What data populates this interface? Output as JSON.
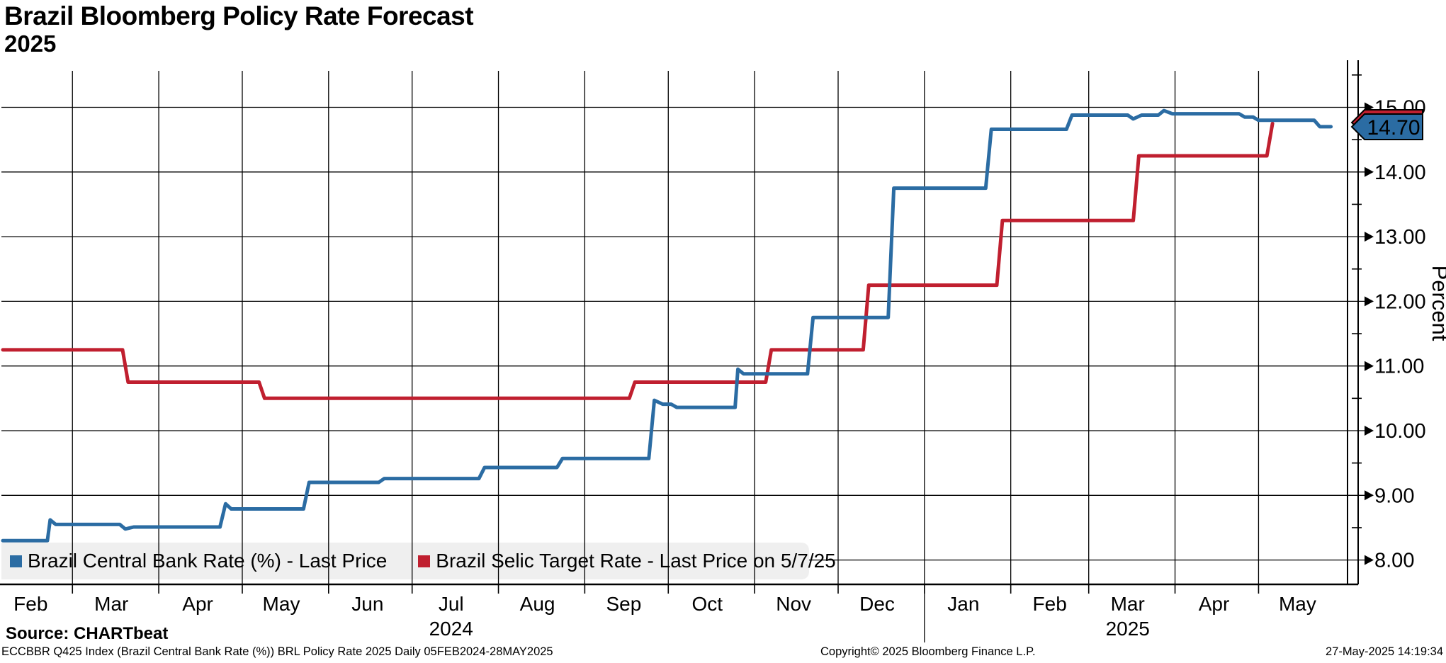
{
  "header": {
    "title": "Brazil Bloomberg Policy Rate Forecast",
    "subtitle": "2025"
  },
  "legend": {
    "items": [
      {
        "label": "Brazil Central Bank Rate (%) - Last Price",
        "color": "#2b6ca3"
      },
      {
        "label": "Brazil Selic Target Rate - Last Price on 5/7/25",
        "color": "#c01f2f"
      }
    ],
    "background_color": "#efefef"
  },
  "right_axis": {
    "title": "Percent",
    "last_price_tag": {
      "value": "14.70",
      "fill": "#2b6ca3",
      "text_color": "#ffffff"
    },
    "secondary_tag": {
      "value": "14.75",
      "fill": "#c01f2f"
    }
  },
  "footer": {
    "source": "Source: CHARTbeat",
    "description": "ECCBBR Q425 Index (Brazil Central Bank Rate (%)) BRL Policy Rate 2025  Daily 05FEB2024-28MAY2025",
    "copyright": "Copyright© 2025 Bloomberg Finance L.P.",
    "timestamp": "27-May-2025 14:19:34"
  },
  "chart_data": {
    "type": "line",
    "title": "Brazil Bloomberg Policy Rate Forecast 2025",
    "grid": true,
    "legend_position": "bottom-left-inside",
    "x_axis": {
      "unit": "days since 05FEB2024",
      "start": "05FEB2024",
      "end": "28MAY2025",
      "month_boundary_days": [
        25,
        56,
        86,
        117,
        147,
        178,
        209,
        239,
        270,
        300,
        331,
        362,
        390,
        421,
        451
      ],
      "month_labels": [
        {
          "label": "Feb",
          "day": 10
        },
        {
          "label": "Mar",
          "day": 39
        },
        {
          "label": "Apr",
          "day": 70
        },
        {
          "label": "May",
          "day": 100
        },
        {
          "label": "Jun",
          "day": 131
        },
        {
          "label": "Jul",
          "day": 161
        },
        {
          "label": "Aug",
          "day": 192
        },
        {
          "label": "Sep",
          "day": 223
        },
        {
          "label": "Oct",
          "day": 253
        },
        {
          "label": "Nov",
          "day": 284
        },
        {
          "label": "Dec",
          "day": 314
        },
        {
          "label": "Jan",
          "day": 345
        },
        {
          "label": "Feb",
          "day": 376
        },
        {
          "label": "Mar",
          "day": 404
        },
        {
          "label": "Apr",
          "day": 435
        },
        {
          "label": "May",
          "day": 465
        }
      ],
      "year_labels": [
        {
          "label": "2024",
          "day": 161
        },
        {
          "label": "2025",
          "day": 404
        }
      ],
      "year_separator_day": 331
    },
    "y_axis": {
      "label": "Percent",
      "ticks": [
        8,
        9,
        10,
        11,
        12,
        13,
        14,
        15
      ],
      "tick_labels": [
        "8.00",
        "9.00",
        "10.00",
        "11.00",
        "12.00",
        "13.00",
        "14.00",
        "15.00"
      ],
      "minor_step": 0.5,
      "range_shown": [
        7.6,
        15.6
      ]
    },
    "series": [
      {
        "name": "Brazil Selic Target Rate",
        "color": "#c01f2f",
        "last_price": 14.75,
        "last_price_date": "5/7/25",
        "points": [
          [
            0,
            11.25
          ],
          [
            43,
            11.25
          ],
          [
            45,
            10.75
          ],
          [
            92,
            10.75
          ],
          [
            94,
            10.5
          ],
          [
            225,
            10.5
          ],
          [
            227,
            10.75
          ],
          [
            274,
            10.75
          ],
          [
            276,
            11.25
          ],
          [
            309,
            11.25
          ],
          [
            311,
            12.25
          ],
          [
            357,
            12.25
          ],
          [
            359,
            13.25
          ],
          [
            406,
            13.25
          ],
          [
            408,
            14.25
          ],
          [
            454,
            14.25
          ],
          [
            456,
            14.75
          ]
        ]
      },
      {
        "name": "Brazil Central Bank Rate (%) - Last Price",
        "color": "#2b6ca3",
        "last_price": 14.7,
        "points": [
          [
            0,
            8.3
          ],
          [
            16,
            8.3
          ],
          [
            17,
            8.62
          ],
          [
            19,
            8.55
          ],
          [
            42,
            8.55
          ],
          [
            44,
            8.48
          ],
          [
            47,
            8.51
          ],
          [
            78,
            8.51
          ],
          [
            80,
            8.87
          ],
          [
            82,
            8.79
          ],
          [
            108,
            8.79
          ],
          [
            110,
            9.2
          ],
          [
            135,
            9.2
          ],
          [
            137,
            9.26
          ],
          [
            171,
            9.26
          ],
          [
            173,
            9.43
          ],
          [
            199,
            9.43
          ],
          [
            201,
            9.57
          ],
          [
            232,
            9.57
          ],
          [
            234,
            10.47
          ],
          [
            237,
            10.41
          ],
          [
            240,
            10.41
          ],
          [
            242,
            10.36
          ],
          [
            263,
            10.36
          ],
          [
            264,
            10.95
          ],
          [
            266,
            10.88
          ],
          [
            289,
            10.88
          ],
          [
            291,
            11.75
          ],
          [
            318,
            11.75
          ],
          [
            320,
            13.75
          ],
          [
            353,
            13.75
          ],
          [
            355,
            14.66
          ],
          [
            382,
            14.66
          ],
          [
            384,
            14.88
          ],
          [
            404,
            14.88
          ],
          [
            406,
            14.82
          ],
          [
            409,
            14.88
          ],
          [
            415,
            14.88
          ],
          [
            417,
            14.95
          ],
          [
            420,
            14.9
          ],
          [
            444,
            14.9
          ],
          [
            446,
            14.85
          ],
          [
            449,
            14.85
          ],
          [
            451,
            14.8
          ],
          [
            471,
            14.8
          ],
          [
            473,
            14.7
          ],
          [
            477,
            14.7
          ]
        ]
      }
    ]
  }
}
